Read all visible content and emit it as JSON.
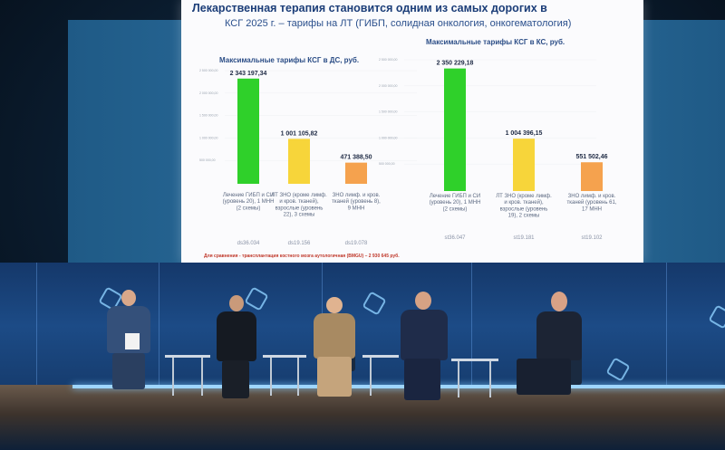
{
  "slide": {
    "title": "Лекарственная терапия становится одним из самых дорогих в",
    "subtitle": "КСГ 2025 г. – тарифы на ЛТ (ГИБП, солидная онкология, онкогематология)",
    "footnote": "Для сравнения - трансплантация костного мозга аутологичная (BMGU) – 2 930 645 руб."
  },
  "chart_data": [
    {
      "type": "bar",
      "title": "Максимальные тарифы КСГ в ДС, руб.",
      "categories": [
        "Лечение ГИБП и СИ (уровень 20), 1 МНН (2 схемы)",
        "ЛТ ЗНО (кроме лимф. и кров. тканей), взрослые (уровень 22), 3 схемы",
        "ЗНО лимф. и кров. тканей (уровень 8), 9 МНН"
      ],
      "codes": [
        "ds36.034",
        "ds19.156",
        "ds19.078"
      ],
      "values": [
        2343197.34,
        1001105.82,
        471388.5
      ],
      "value_labels": [
        "2 343 197,34",
        "1 001 105,82",
        "471 388,50"
      ],
      "colors": [
        "#2fd02a",
        "#f7d53a",
        "#f5a24e"
      ],
      "ytick_labels": [
        "2 500 000,00",
        "2 000 000,00",
        "1 500 000,00",
        "1 000 000,00",
        "500 000,00"
      ],
      "ylim": [
        0,
        2500000
      ]
    },
    {
      "type": "bar",
      "title": "Максимальные тарифы КСГ в КС, руб.",
      "categories": [
        "Лечение ГИБП и СИ (уровень 20), 1 МНН (2 схемы)",
        "ЛТ ЗНО (кроме лимф. и кров. тканей), взрослые (уровень 19), 2 схемы",
        "ЗНО лимф. и кров. тканей (уровень 61, 17 МНН"
      ],
      "codes": [
        "st36.047",
        "st19.181",
        "st19.102"
      ],
      "values": [
        2350229.18,
        1004396.15,
        551502.46
      ],
      "value_labels": [
        "2 350 229,18",
        "1 004 396,15",
        "551 502,46"
      ],
      "colors": [
        "#2fd02a",
        "#f7d53a",
        "#f5a24e"
      ],
      "ytick_labels": [
        "2 500 000,00",
        "2 000 000,00",
        "1 500 000,00",
        "1 000 000,00",
        "500 000,00"
      ],
      "ylim": [
        0,
        2500000
      ]
    }
  ]
}
